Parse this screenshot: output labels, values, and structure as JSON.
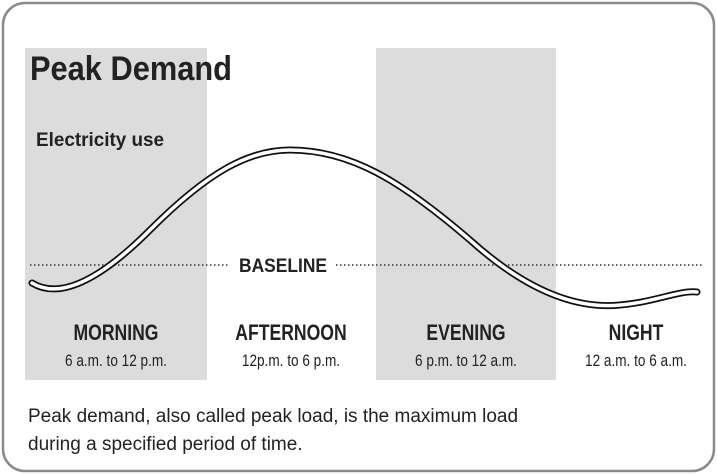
{
  "title": "Peak Demand",
  "y_label": "Electricity use",
  "baseline_label": "BASELINE",
  "periods": [
    {
      "name": "MORNING",
      "time": "6 a.m. to 12 p.m."
    },
    {
      "name": "AFTERNOON",
      "time": "12p.m. to 6 p.m."
    },
    {
      "name": "EVENING",
      "time": "6 p.m. to 12 a.m."
    },
    {
      "name": "NIGHT",
      "time": "12 a.m. to 6 a.m."
    }
  ],
  "caption": [
    "Peak demand, also called peak load, is the maximum load",
    "during a specified period of time."
  ]
}
